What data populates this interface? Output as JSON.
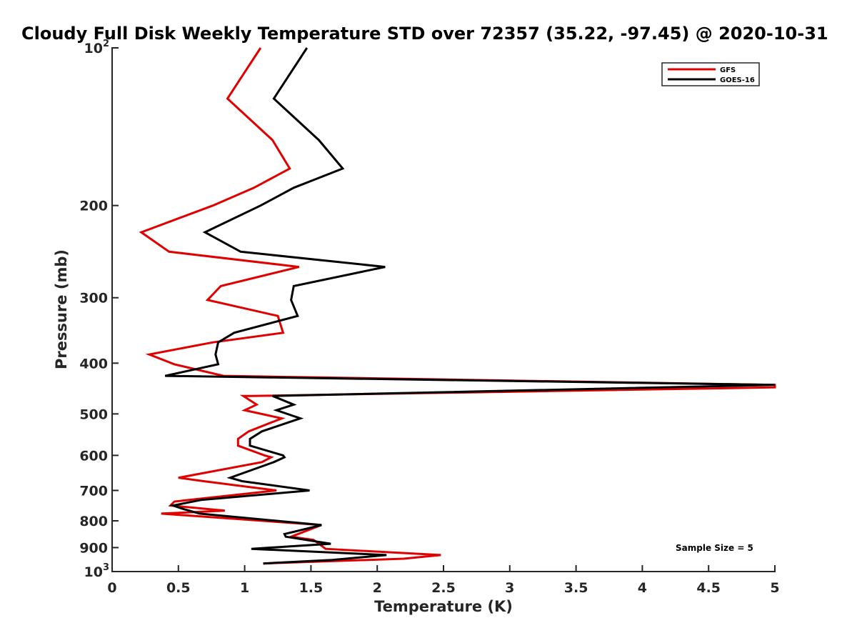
{
  "chart_data": {
    "type": "line",
    "title": "Cloudy Full Disk Weekly Temperature STD over 72357 (35.22, -97.45) @ 2020-10-31",
    "xlabel": "Temperature (K)",
    "ylabel": "Pressure (mb)",
    "xlim": [
      0,
      5
    ],
    "ylim": [
      100,
      1000
    ],
    "y_scale": "log",
    "y_reversed": true,
    "grid": false,
    "legend_position": "top-right",
    "x_ticks": [
      0,
      0.5,
      1,
      1.5,
      2,
      2.5,
      3,
      3.5,
      4,
      4.5,
      5
    ],
    "x_tick_labels": [
      "0",
      "0.5",
      "1",
      "1.5",
      "2",
      "2.5",
      "3",
      "3.5",
      "4",
      "4.5",
      "5"
    ],
    "y_ticks": [
      100,
      200,
      300,
      400,
      500,
      600,
      700,
      800,
      900,
      1000
    ],
    "y_tick_labels": [
      {
        "base": "10",
        "exp": "2"
      },
      {
        "base": "200",
        "exp": ""
      },
      {
        "base": "300",
        "exp": ""
      },
      {
        "base": "400",
        "exp": ""
      },
      {
        "base": "500",
        "exp": ""
      },
      {
        "base": "600",
        "exp": ""
      },
      {
        "base": "700",
        "exp": ""
      },
      {
        "base": "800",
        "exp": ""
      },
      {
        "base": "900",
        "exp": ""
      },
      {
        "base": "10",
        "exp": "3"
      }
    ],
    "annotation": "Sample Size = 5",
    "series": [
      {
        "name": "GFS",
        "color": "#e00000",
        "points": [
          [
            1.12,
            100
          ],
          [
            0.87,
            125
          ],
          [
            1.21,
            150
          ],
          [
            1.34,
            170
          ],
          [
            1.07,
            185
          ],
          [
            0.76,
            200
          ],
          [
            0.22,
            225
          ],
          [
            0.43,
            245
          ],
          [
            1.41,
            262
          ],
          [
            0.82,
            285
          ],
          [
            0.72,
            303
          ],
          [
            1.25,
            325
          ],
          [
            1.29,
            350
          ],
          [
            0.76,
            365
          ],
          [
            0.28,
            385
          ],
          [
            0.47,
            402
          ],
          [
            0.84,
            423
          ],
          [
            5.0,
            440
          ],
          [
            5.0,
            445
          ],
          [
            1.05,
            462
          ],
          [
            0.99,
            462
          ],
          [
            1.09,
            480
          ],
          [
            1.0,
            492
          ],
          [
            1.28,
            510
          ],
          [
            1.03,
            540
          ],
          [
            0.95,
            558
          ],
          [
            0.95,
            575
          ],
          [
            1.15,
            600
          ],
          [
            1.2,
            605
          ],
          [
            1.13,
            618
          ],
          [
            0.5,
            662
          ],
          [
            0.69,
            672
          ],
          [
            1.24,
            700
          ],
          [
            0.47,
            735
          ],
          [
            0.44,
            748
          ],
          [
            0.85,
            765
          ],
          [
            0.37,
            775
          ],
          [
            1.58,
            815
          ],
          [
            1.35,
            858
          ],
          [
            1.52,
            870
          ],
          [
            1.56,
            885
          ],
          [
            1.61,
            905
          ],
          [
            2.48,
            930
          ],
          [
            2.2,
            945
          ],
          [
            1.14,
            965
          ]
        ]
      },
      {
        "name": "GOES-16",
        "color": "#000000",
        "points": [
          [
            1.47,
            100
          ],
          [
            1.22,
            125
          ],
          [
            1.56,
            150
          ],
          [
            1.74,
            170
          ],
          [
            1.37,
            185
          ],
          [
            1.12,
            200
          ],
          [
            0.7,
            225
          ],
          [
            0.97,
            245
          ],
          [
            2.06,
            262
          ],
          [
            1.37,
            285
          ],
          [
            1.35,
            303
          ],
          [
            1.4,
            325
          ],
          [
            0.92,
            350
          ],
          [
            0.8,
            365
          ],
          [
            0.78,
            385
          ],
          [
            0.8,
            402
          ],
          [
            0.4,
            423
          ],
          [
            5.0,
            440
          ],
          [
            1.21,
            462
          ],
          [
            1.37,
            480
          ],
          [
            1.24,
            492
          ],
          [
            1.42,
            510
          ],
          [
            1.13,
            540
          ],
          [
            1.04,
            558
          ],
          [
            1.04,
            575
          ],
          [
            1.29,
            600
          ],
          [
            1.3,
            605
          ],
          [
            1.22,
            618
          ],
          [
            0.89,
            662
          ],
          [
            0.98,
            672
          ],
          [
            1.49,
            700
          ],
          [
            0.67,
            730
          ],
          [
            0.46,
            748
          ],
          [
            0.54,
            760
          ],
          [
            0.66,
            775
          ],
          [
            1.58,
            815
          ],
          [
            1.3,
            848
          ],
          [
            1.31,
            858
          ],
          [
            1.65,
            885
          ],
          [
            1.05,
            905
          ],
          [
            2.07,
            930
          ],
          [
            1.66,
            950
          ],
          [
            1.14,
            965
          ]
        ]
      }
    ]
  }
}
